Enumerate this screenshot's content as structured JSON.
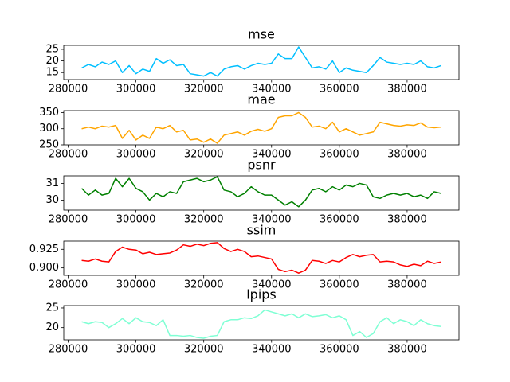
{
  "chart_data": [
    {
      "type": "line",
      "title": "mse",
      "color": "#00bfff",
      "x": [
        284000,
        286000,
        288000,
        290000,
        292000,
        294000,
        296000,
        298000,
        300000,
        302000,
        304000,
        306000,
        308000,
        310000,
        312000,
        314000,
        316000,
        318000,
        320000,
        322000,
        324000,
        326000,
        328000,
        330000,
        332000,
        334000,
        336000,
        338000,
        340000,
        342000,
        344000,
        346000,
        348000,
        350000,
        352000,
        354000,
        356000,
        358000,
        360000,
        362000,
        364000,
        366000,
        368000,
        370000,
        372000,
        374000,
        376000,
        378000,
        380000,
        382000,
        384000,
        386000,
        388000,
        390000
      ],
      "values": [
        17,
        18.5,
        17.5,
        19.5,
        18.5,
        20,
        15,
        18,
        14.5,
        16.5,
        15.5,
        21,
        19,
        20.5,
        18,
        18.5,
        14.5,
        14,
        13.5,
        15,
        13.5,
        16.5,
        17.5,
        18,
        16.5,
        18,
        19,
        18.5,
        19,
        23,
        21,
        21,
        26,
        21.5,
        17,
        17.5,
        16.5,
        20,
        15,
        17,
        16,
        15.5,
        15,
        18,
        21.5,
        19.5,
        19,
        18.5,
        19,
        18.5,
        20,
        17.5,
        17,
        18
      ],
      "xlim": [
        278700,
        395300
      ],
      "ylim": [
        12,
        26.7
      ],
      "xticks": [
        280000,
        300000,
        320000,
        340000,
        360000,
        380000
      ],
      "yticks": [
        15,
        20,
        25
      ]
    },
    {
      "type": "line",
      "title": "mae",
      "color": "#ffa500",
      "x": [
        284000,
        286000,
        288000,
        290000,
        292000,
        294000,
        296000,
        298000,
        300000,
        302000,
        304000,
        306000,
        308000,
        310000,
        312000,
        314000,
        316000,
        318000,
        320000,
        322000,
        324000,
        326000,
        328000,
        330000,
        332000,
        334000,
        336000,
        338000,
        340000,
        342000,
        344000,
        346000,
        348000,
        350000,
        352000,
        354000,
        356000,
        358000,
        360000,
        362000,
        364000,
        366000,
        368000,
        370000,
        372000,
        374000,
        376000,
        378000,
        380000,
        382000,
        384000,
        386000,
        388000,
        390000
      ],
      "values": [
        300,
        305,
        300,
        308,
        305,
        310,
        270,
        295,
        265,
        280,
        270,
        305,
        300,
        310,
        290,
        295,
        265,
        268,
        258,
        268,
        255,
        280,
        285,
        290,
        280,
        292,
        298,
        292,
        300,
        335,
        340,
        340,
        350,
        335,
        305,
        308,
        300,
        320,
        290,
        300,
        290,
        280,
        285,
        290,
        320,
        315,
        310,
        308,
        312,
        310,
        318,
        305,
        303,
        305
      ],
      "xlim": [
        278700,
        395300
      ],
      "ylim": [
        250,
        356
      ],
      "xticks": [
        280000,
        300000,
        320000,
        340000,
        360000,
        380000
      ],
      "yticks": [
        250,
        300,
        350
      ]
    },
    {
      "type": "line",
      "title": "psnr",
      "color": "#008000",
      "x": [
        284000,
        286000,
        288000,
        290000,
        292000,
        294000,
        296000,
        298000,
        300000,
        302000,
        304000,
        306000,
        308000,
        310000,
        312000,
        314000,
        316000,
        318000,
        320000,
        322000,
        324000,
        326000,
        328000,
        330000,
        332000,
        334000,
        336000,
        338000,
        340000,
        342000,
        344000,
        346000,
        348000,
        350000,
        352000,
        354000,
        356000,
        358000,
        360000,
        362000,
        364000,
        366000,
        368000,
        370000,
        372000,
        374000,
        376000,
        378000,
        380000,
        382000,
        384000,
        386000,
        388000,
        390000
      ],
      "values": [
        30.7,
        30.3,
        30.6,
        30.3,
        30.4,
        31.3,
        30.8,
        31.3,
        30.7,
        30.5,
        30.0,
        30.4,
        30.2,
        30.5,
        30.4,
        31.1,
        31.2,
        31.3,
        31.1,
        31.2,
        31.4,
        30.6,
        30.5,
        30.2,
        30.4,
        30.8,
        30.5,
        30.3,
        30.3,
        30.0,
        29.7,
        29.9,
        29.6,
        30.0,
        30.6,
        30.7,
        30.5,
        30.8,
        30.6,
        30.9,
        30.8,
        31.0,
        30.9,
        30.2,
        30.1,
        30.3,
        30.4,
        30.3,
        30.4,
        30.2,
        30.3,
        30.1,
        30.5,
        30.4
      ],
      "xlim": [
        278700,
        395300
      ],
      "ylim": [
        29.4,
        31.45
      ],
      "xticks": [
        280000,
        300000,
        320000,
        340000,
        360000,
        380000
      ],
      "yticks": [
        30,
        31
      ]
    },
    {
      "type": "line",
      "title": "ssim",
      "color": "#ff0000",
      "x": [
        284000,
        286000,
        288000,
        290000,
        292000,
        294000,
        296000,
        298000,
        300000,
        302000,
        304000,
        306000,
        308000,
        310000,
        312000,
        314000,
        316000,
        318000,
        320000,
        322000,
        324000,
        326000,
        328000,
        330000,
        332000,
        334000,
        336000,
        338000,
        340000,
        342000,
        344000,
        346000,
        348000,
        350000,
        352000,
        354000,
        356000,
        358000,
        360000,
        362000,
        364000,
        366000,
        368000,
        370000,
        372000,
        374000,
        376000,
        378000,
        380000,
        382000,
        384000,
        386000,
        388000,
        390000
      ],
      "values": [
        0.91,
        0.909,
        0.912,
        0.909,
        0.908,
        0.922,
        0.928,
        0.925,
        0.924,
        0.919,
        0.921,
        0.918,
        0.919,
        0.92,
        0.924,
        0.931,
        0.929,
        0.932,
        0.93,
        0.933,
        0.934,
        0.926,
        0.922,
        0.925,
        0.922,
        0.915,
        0.916,
        0.914,
        0.912,
        0.898,
        0.895,
        0.897,
        0.893,
        0.897,
        0.91,
        0.909,
        0.906,
        0.91,
        0.908,
        0.914,
        0.918,
        0.915,
        0.917,
        0.918,
        0.908,
        0.909,
        0.908,
        0.904,
        0.902,
        0.905,
        0.903,
        0.909,
        0.906,
        0.908
      ],
      "xlim": [
        278700,
        395300
      ],
      "ylim": [
        0.89,
        0.936
      ],
      "xticks": [
        280000,
        300000,
        320000,
        340000,
        360000,
        380000
      ],
      "yticks": [
        {
          "value": 0.9,
          "label": "0.900"
        },
        {
          "value": 0.925,
          "label": "0.925"
        }
      ]
    },
    {
      "type": "line",
      "title": "lpips",
      "color": "#7fffd4",
      "x": [
        284000,
        286000,
        288000,
        290000,
        292000,
        294000,
        296000,
        298000,
        300000,
        302000,
        304000,
        306000,
        308000,
        310000,
        312000,
        314000,
        316000,
        318000,
        320000,
        322000,
        324000,
        326000,
        328000,
        330000,
        332000,
        334000,
        336000,
        338000,
        340000,
        342000,
        344000,
        346000,
        348000,
        350000,
        352000,
        354000,
        356000,
        358000,
        360000,
        362000,
        364000,
        366000,
        368000,
        370000,
        372000,
        374000,
        376000,
        378000,
        380000,
        382000,
        384000,
        386000,
        388000,
        390000
      ],
      "values": [
        21.5,
        21.0,
        21.5,
        21.3,
        20.0,
        21.0,
        22.3,
        21.0,
        22.5,
        21.5,
        21.3,
        20.5,
        22.0,
        18.0,
        18.0,
        17.8,
        18.0,
        17.5,
        17.3,
        17.8,
        18.0,
        21.5,
        22.0,
        22.0,
        22.5,
        22.3,
        23.0,
        24.5,
        24.0,
        23.5,
        23.0,
        23.5,
        22.5,
        23.5,
        22.8,
        23.0,
        23.3,
        22.5,
        23.0,
        22.0,
        18.0,
        19.0,
        17.5,
        18.5,
        21.5,
        22.5,
        21.0,
        22.0,
        21.5,
        20.5,
        22.0,
        21.0,
        20.5,
        20.3
      ],
      "xlim": [
        278700,
        395300
      ],
      "ylim": [
        16.9,
        25.6
      ],
      "xticks": [
        280000,
        300000,
        320000,
        340000,
        360000,
        380000
      ],
      "yticks": [
        20,
        25
      ]
    }
  ]
}
